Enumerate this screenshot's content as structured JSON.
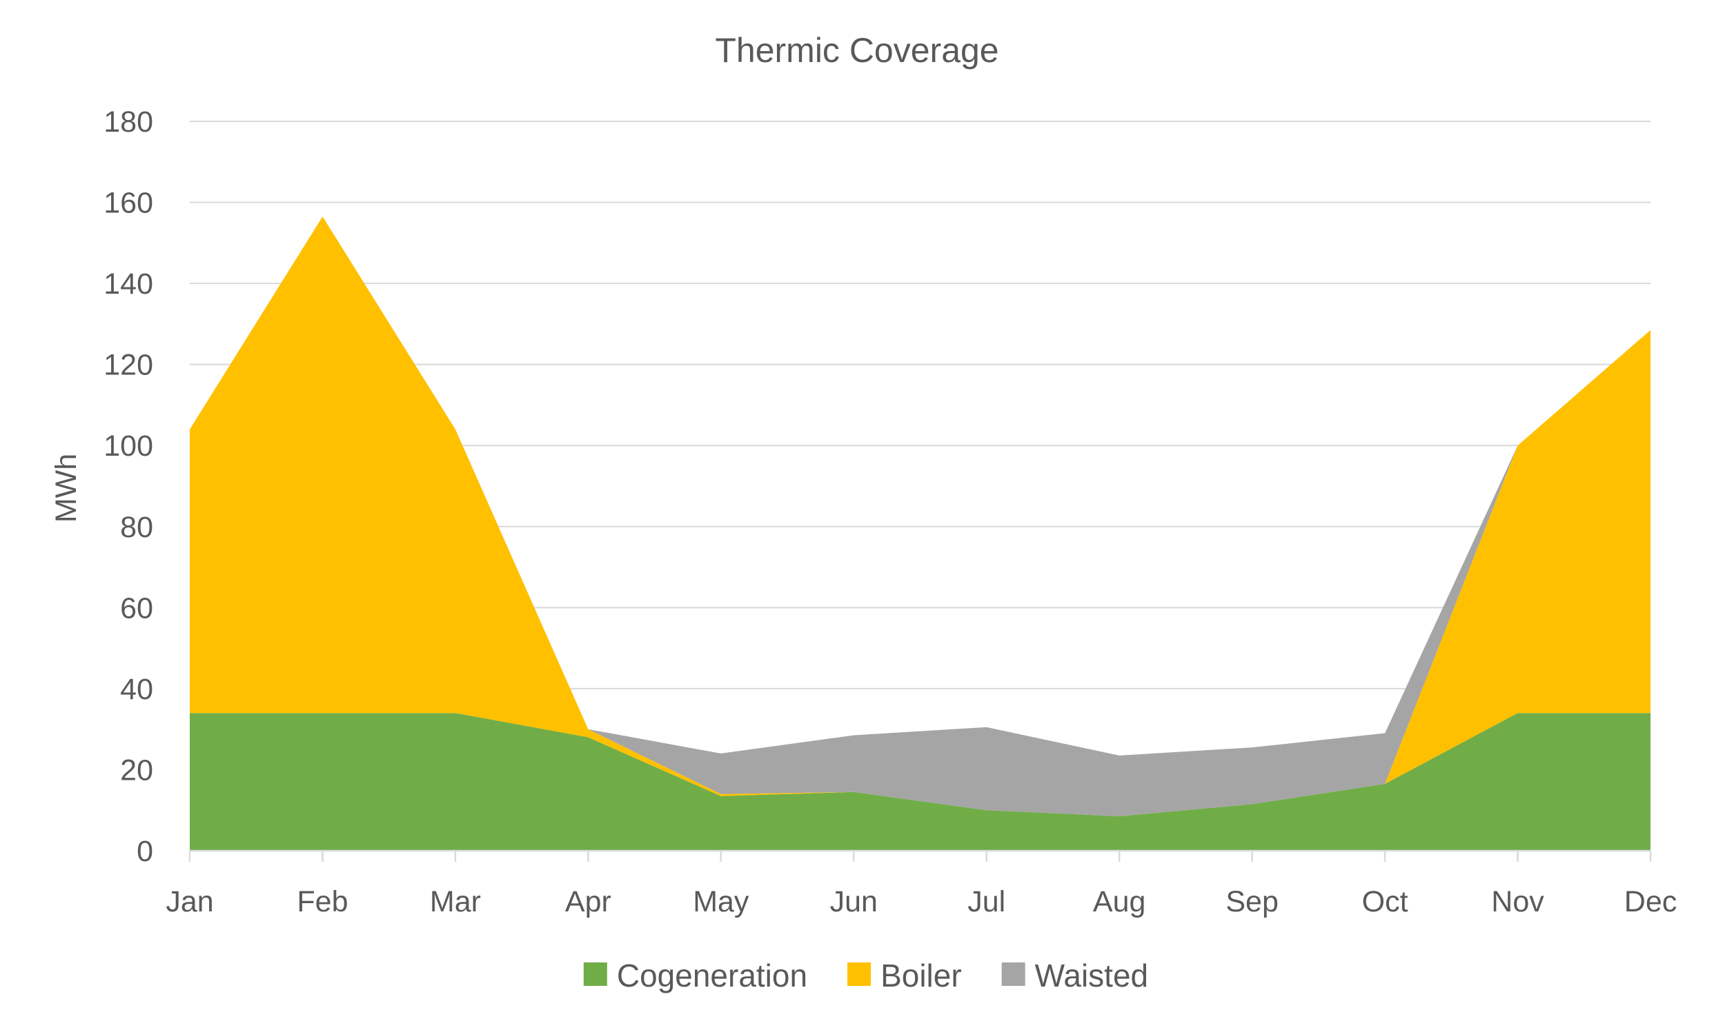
{
  "chart_data": {
    "type": "area",
    "stacked": true,
    "title": "Thermic Coverage",
    "xlabel": "",
    "ylabel": "MWh",
    "ylim": [
      0,
      180
    ],
    "yticks": [
      0,
      20,
      40,
      60,
      80,
      100,
      120,
      140,
      160,
      180
    ],
    "categories": [
      "Jan",
      "Feb",
      "Mar",
      "Apr",
      "May",
      "Jun",
      "Jul",
      "Aug",
      "Sep",
      "Oct",
      "Nov",
      "Dec"
    ],
    "grid": true,
    "legend_position": "bottom",
    "series": [
      {
        "name": "Cogeneration",
        "color": "#70ad47",
        "values": [
          34,
          34,
          34,
          28,
          13.5,
          14.5,
          10,
          8.5,
          11.5,
          16.5,
          34,
          34
        ]
      },
      {
        "name": "Boiler",
        "color": "#ffc000",
        "values": [
          70,
          122.5,
          70,
          2,
          0.5,
          0,
          0,
          0,
          0,
          0,
          66,
          94.5
        ]
      },
      {
        "name": "Waisted",
        "color": "#a5a5a5",
        "values": [
          0,
          0,
          0,
          0,
          10,
          14,
          20.5,
          15,
          14,
          12.5,
          0,
          0
        ]
      }
    ]
  }
}
